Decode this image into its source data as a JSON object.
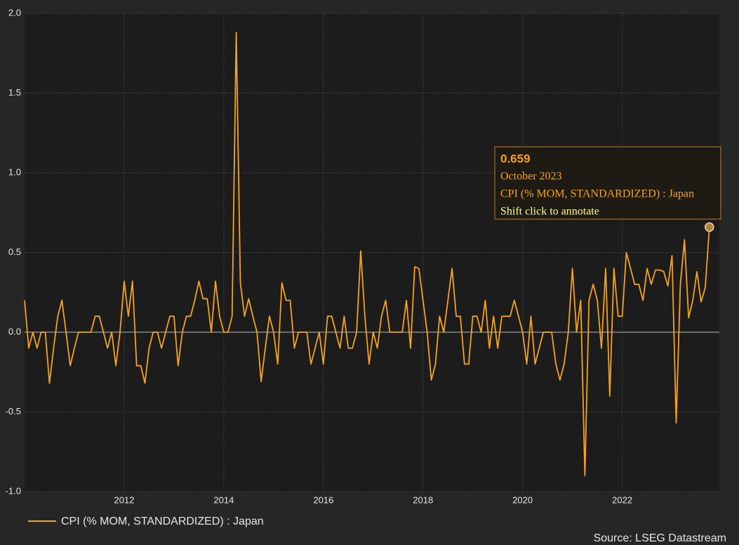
{
  "chart_data": {
    "type": "line",
    "x": [
      2010,
      2010.083,
      2010.167,
      2010.25,
      2010.333,
      2010.417,
      2010.5,
      2010.583,
      2010.667,
      2010.75,
      2010.833,
      2010.917,
      2011,
      2011.083,
      2011.167,
      2011.25,
      2011.333,
      2011.417,
      2011.5,
      2011.583,
      2011.667,
      2011.75,
      2011.833,
      2011.917,
      2012,
      2012.083,
      2012.167,
      2012.25,
      2012.333,
      2012.417,
      2012.5,
      2012.583,
      2012.667,
      2012.75,
      2012.833,
      2012.917,
      2013,
      2013.083,
      2013.167,
      2013.25,
      2013.333,
      2013.417,
      2013.5,
      2013.583,
      2013.667,
      2013.75,
      2013.833,
      2013.917,
      2014,
      2014.083,
      2014.167,
      2014.25,
      2014.333,
      2014.417,
      2014.5,
      2014.583,
      2014.667,
      2014.75,
      2014.833,
      2014.917,
      2015,
      2015.083,
      2015.167,
      2015.25,
      2015.333,
      2015.417,
      2015.5,
      2015.583,
      2015.667,
      2015.75,
      2015.833,
      2015.917,
      2016,
      2016.083,
      2016.167,
      2016.25,
      2016.333,
      2016.417,
      2016.5,
      2016.583,
      2016.667,
      2016.75,
      2016.833,
      2016.917,
      2017,
      2017.083,
      2017.167,
      2017.25,
      2017.333,
      2017.417,
      2017.5,
      2017.583,
      2017.667,
      2017.75,
      2017.833,
      2017.917,
      2018,
      2018.083,
      2018.167,
      2018.25,
      2018.333,
      2018.417,
      2018.5,
      2018.583,
      2018.667,
      2018.75,
      2018.833,
      2018.917,
      2019,
      2019.083,
      2019.167,
      2019.25,
      2019.333,
      2019.417,
      2019.5,
      2019.583,
      2019.667,
      2019.75,
      2019.833,
      2019.917,
      2020,
      2020.083,
      2020.167,
      2020.25,
      2020.333,
      2020.417,
      2020.5,
      2020.583,
      2020.667,
      2020.75,
      2020.833,
      2020.917,
      2021,
      2021.083,
      2021.167,
      2021.25,
      2021.333,
      2021.417,
      2021.5,
      2021.583,
      2021.667,
      2021.75,
      2021.833,
      2021.917,
      2022,
      2022.083,
      2022.167,
      2022.25,
      2022.333,
      2022.417,
      2022.5,
      2022.583,
      2022.667,
      2022.75,
      2022.833,
      2022.917,
      2023,
      2023.083,
      2023.167,
      2023.25,
      2023.333,
      2023.417,
      2023.5,
      2023.583,
      2023.667,
      2023.75
    ],
    "series": [
      {
        "name": "CPI (% MOM, STANDARDIZED) : Japan",
        "color": "#f5a21c",
        "values": [
          0.2,
          -0.1,
          0,
          -0.1,
          0,
          0,
          -0.32,
          -0.1,
          0.1,
          0.2,
          0,
          -0.21,
          -0.1,
          0,
          0,
          0,
          0,
          0.1,
          0.1,
          0,
          -0.1,
          0,
          -0.21,
          0,
          0.32,
          0.1,
          0.32,
          -0.21,
          -0.21,
          -0.32,
          -0.1,
          0,
          0,
          -0.1,
          0,
          0.1,
          0.1,
          -0.21,
          0,
          0.1,
          0.1,
          0.2,
          0.32,
          0.21,
          0.21,
          0,
          0.32,
          0.1,
          0,
          0,
          0.1,
          1.88,
          0.31,
          0.1,
          0.21,
          0.1,
          0,
          -0.31,
          -0.1,
          0.1,
          0,
          -0.2,
          0.31,
          0.2,
          0.2,
          -0.1,
          0,
          0,
          0,
          -0.2,
          -0.1,
          0,
          -0.2,
          0.1,
          0.1,
          0,
          -0.1,
          0.1,
          -0.1,
          -0.1,
          0,
          0.51,
          0.1,
          -0.2,
          0,
          -0.1,
          0.1,
          0.2,
          0,
          0,
          0,
          0,
          0.2,
          -0.1,
          0.41,
          0.4,
          0.2,
          0,
          -0.3,
          -0.2,
          0.1,
          0,
          0.2,
          0.4,
          0.1,
          0.1,
          -0.2,
          -0.2,
          0.1,
          0.1,
          0,
          0.2,
          -0.1,
          0.1,
          -0.1,
          0.1,
          0.1,
          0.1,
          0.2,
          0.1,
          0,
          -0.2,
          0.1,
          -0.2,
          -0.1,
          0,
          0,
          0,
          -0.2,
          -0.3,
          -0.2,
          0,
          0.4,
          0,
          0.2,
          -0.9,
          0.2,
          0.3,
          0.2,
          -0.1,
          0.4,
          -0.4,
          0.4,
          0.1,
          0.1,
          0.5,
          0.4,
          0.3,
          0.3,
          0.2,
          0.4,
          0.3,
          0.39,
          0.39,
          0.38,
          0.29,
          0.48,
          -0.57,
          0.3,
          0.58,
          0.09,
          0.2,
          0.38,
          0.19,
          0.28,
          0.659
        ]
      }
    ],
    "xlim": [
      2010,
      2023.95
    ],
    "xticks": [
      2012,
      2014,
      2016,
      2018,
      2020,
      2022
    ],
    "ylim": [
      -1,
      2
    ],
    "yticks": [
      {
        "value": 2,
        "label": "2.0"
      },
      1.5,
      {
        "value": 1,
        "label": "1.0"
      },
      0.5,
      {
        "value": 0,
        "label": "0.0"
      },
      -0.5,
      {
        "value": -1,
        "label": "-1.0"
      }
    ],
    "grid": true,
    "tooltip": {
      "date": "October 2023",
      "hint": "Shift click to annotate"
    },
    "source": "Source: LSEG Datastream"
  }
}
